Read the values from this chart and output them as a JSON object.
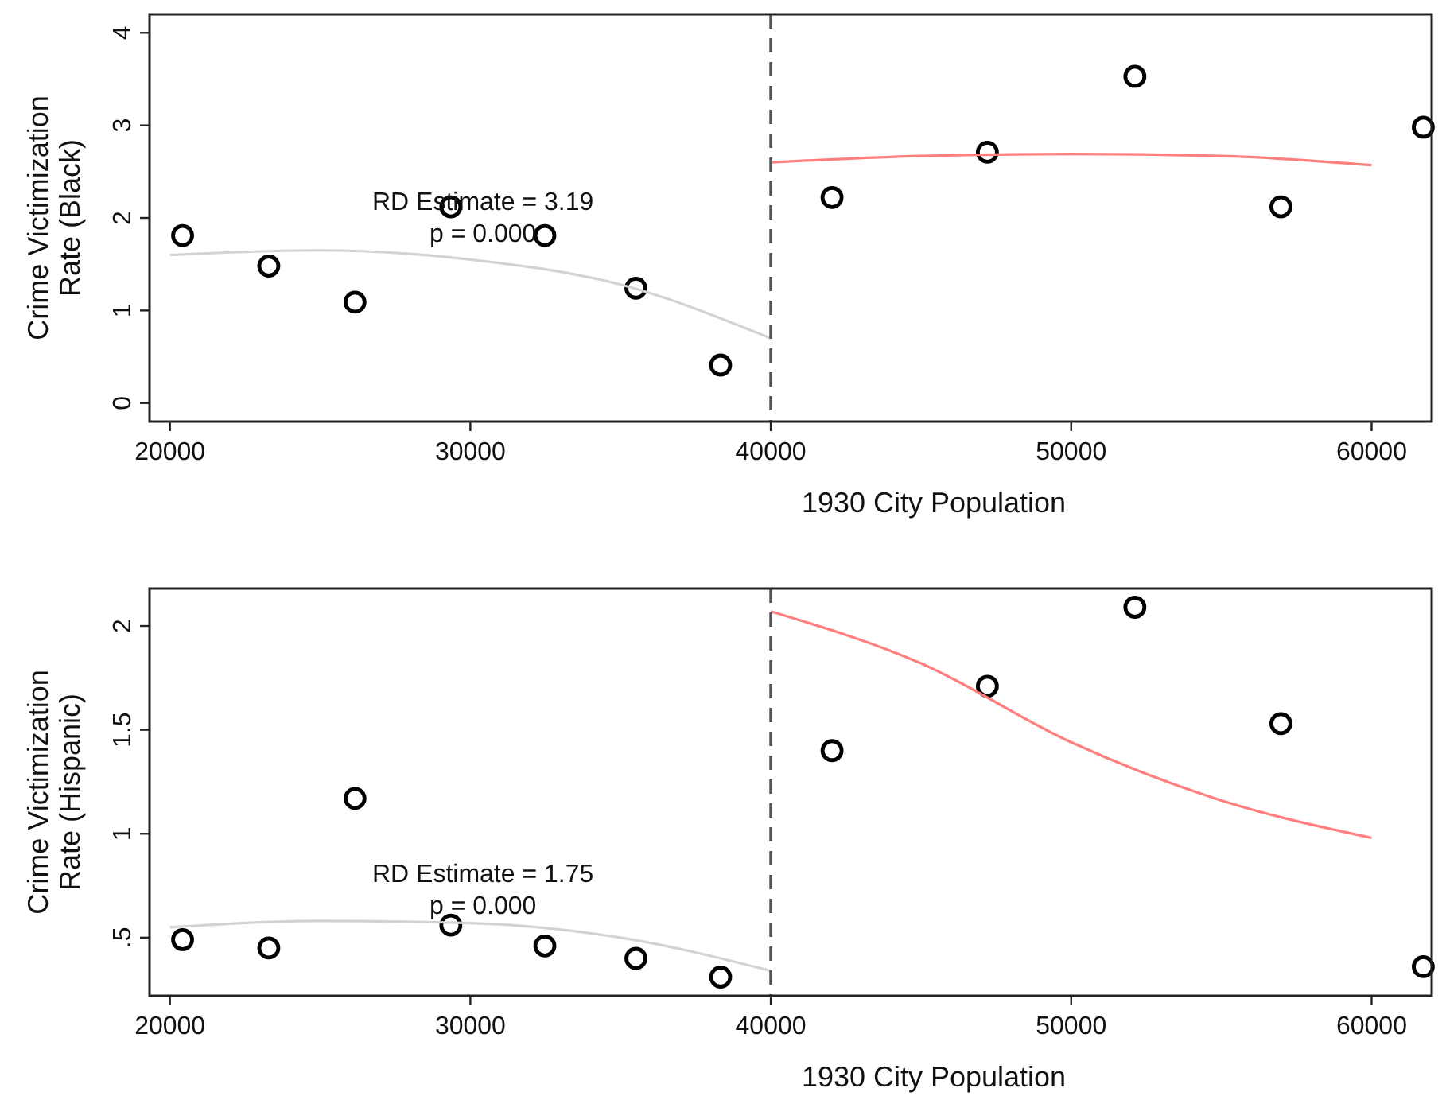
{
  "chart_data": [
    {
      "type": "scatter",
      "xlabel": "1930 City Population",
      "ylabel": "Crime Victimization\nRate (Black)",
      "xlim": [
        19320,
        62000
      ],
      "xticks": [
        20000,
        30000,
        40000,
        50000,
        60000
      ],
      "ylim": [
        -0.2,
        4.2
      ],
      "yticks": [
        0,
        1,
        2,
        3,
        4
      ],
      "grid": false,
      "series": [
        {
          "color": "#000000",
          "marker": "circle",
          "x": [
            20420,
            23290,
            26160,
            29350,
            32480,
            35510,
            38330,
            42040,
            47210,
            52120,
            56980,
            61720
          ],
          "values": [
            1.81,
            1.48,
            1.09,
            2.12,
            1.81,
            1.24,
            0.41,
            2.22,
            2.71,
            3.53,
            2.12,
            2.98
          ]
        },
        {
          "type": "line",
          "color": "#d3d3d3",
          "x": [
            20000,
            25000,
            30000,
            35000,
            40000
          ],
          "values": [
            1.6,
            1.65,
            1.55,
            1.28,
            0.7
          ]
        },
        {
          "type": "line",
          "color": "#ff7f7f",
          "x": [
            40000,
            45000,
            50000,
            55000,
            60000
          ],
          "values": [
            2.6,
            2.67,
            2.69,
            2.67,
            2.57
          ]
        }
      ],
      "ref_lines": [
        {
          "axis": "x",
          "value": 40000,
          "color": "#555555",
          "line_style": "dashed"
        }
      ],
      "annotations": [
        "RD Estimate = 3.19",
        "p = 0.000"
      ]
    },
    {
      "type": "scatter",
      "xlabel": "1930 City Population",
      "ylabel": "Crime Victimization\nRate (Hispanic)",
      "xlim": [
        19320,
        62000
      ],
      "xticks": [
        20000,
        30000,
        40000,
        50000,
        60000
      ],
      "ylim": [
        0.22,
        2.18
      ],
      "yticks": [
        {
          "value": 0.5,
          "label": ".5"
        },
        1,
        1.5,
        2
      ],
      "grid": false,
      "series": [
        {
          "color": "#000000",
          "marker": "circle",
          "x": [
            20420,
            23290,
            26160,
            29350,
            32480,
            35510,
            38330,
            42040,
            47210,
            52120,
            56980,
            61720
          ],
          "values": [
            0.49,
            0.45,
            1.17,
            0.56,
            0.46,
            0.4,
            0.31,
            1.4,
            1.71,
            2.09,
            1.53,
            0.36
          ]
        },
        {
          "type": "line",
          "color": "#d3d3d3",
          "x": [
            20000,
            25000,
            30000,
            35000,
            40000
          ],
          "values": [
            0.55,
            0.58,
            0.57,
            0.5,
            0.34
          ]
        },
        {
          "type": "line",
          "color": "#ff7f7f",
          "x": [
            40000,
            45000,
            50000,
            55000,
            60000
          ],
          "values": [
            2.07,
            1.82,
            1.44,
            1.16,
            0.98
          ]
        }
      ],
      "ref_lines": [
        {
          "axis": "x",
          "value": 40000,
          "color": "#555555",
          "line_style": "dashed"
        }
      ],
      "annotations": [
        "RD Estimate = 1.75",
        "p = 0.000"
      ]
    }
  ]
}
